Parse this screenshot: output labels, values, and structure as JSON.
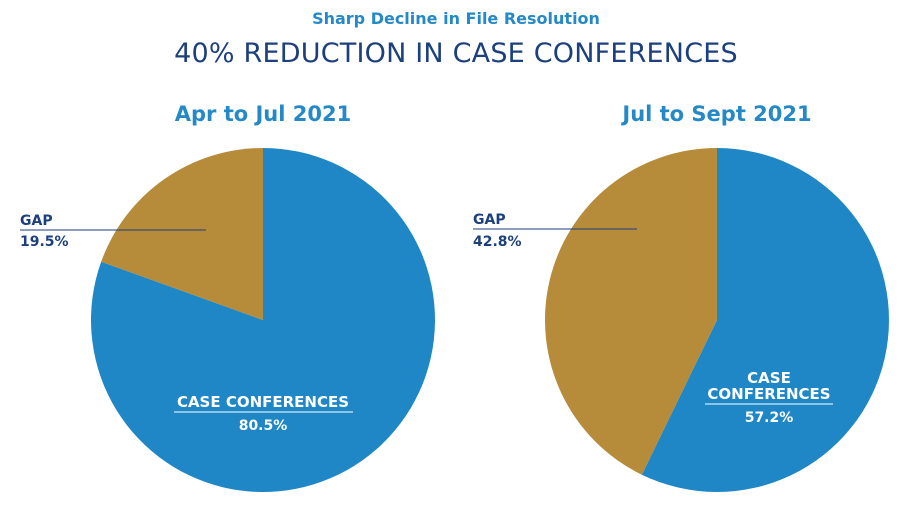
{
  "subtitle": "Sharp Decline in File Resolution",
  "title": "40% REDUCTION IN CASE CONFERENCES",
  "colors": {
    "case_conferences": "#1f87c5",
    "gap": "#b68b3a",
    "title": "#1c3f7d",
    "accent": "#2489c6"
  },
  "chart_data": [
    {
      "type": "pie",
      "title": "Apr to Jul 2021",
      "slices": [
        {
          "label": "CASE CONFERENCES",
          "value": 80.5,
          "display": "80.5%"
        },
        {
          "label": "GAP",
          "value": 19.5,
          "display": "19.5%"
        }
      ],
      "legend": "none"
    },
    {
      "type": "pie",
      "title": "Jul to Sept 2021",
      "slices": [
        {
          "label": "CASE CONFERENCES",
          "value": 57.2,
          "display": "57.2%"
        },
        {
          "label": "GAP",
          "value": 42.8,
          "display": "42.8%"
        }
      ],
      "legend": "none"
    }
  ]
}
